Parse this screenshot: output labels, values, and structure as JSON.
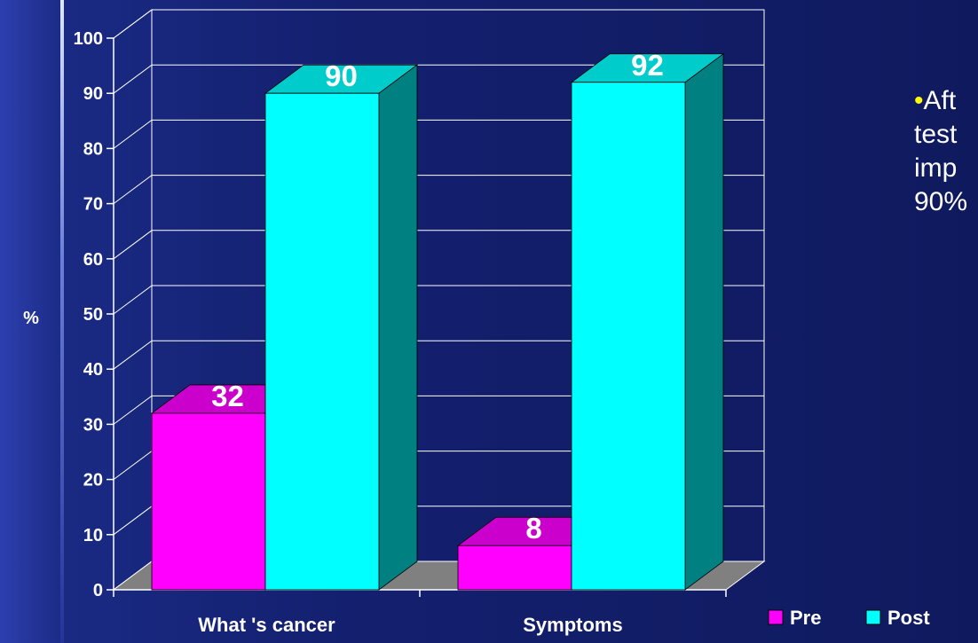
{
  "chart_data": {
    "type": "bar",
    "categories": [
      "What 's cancer",
      "Symptoms"
    ],
    "series": [
      {
        "name": "Pre",
        "values": [
          32,
          8
        ],
        "color": "#ff00ff",
        "top_color": "#cc00cc",
        "side_color": "#990099"
      },
      {
        "name": "Post",
        "values": [
          90,
          92
        ],
        "color": "#00ffff",
        "top_color": "#00cccc",
        "side_color": "#008080"
      }
    ],
    "ylabel": "%",
    "ylim": [
      0,
      100
    ],
    "yticks": [
      0,
      10,
      20,
      30,
      40,
      50,
      60,
      70,
      80,
      90,
      100
    ],
    "grid": true,
    "legend": "bottom-right"
  },
  "side_note": {
    "bullet": "•",
    "lines": [
      "Aft",
      "test",
      "imp",
      "90%"
    ]
  }
}
